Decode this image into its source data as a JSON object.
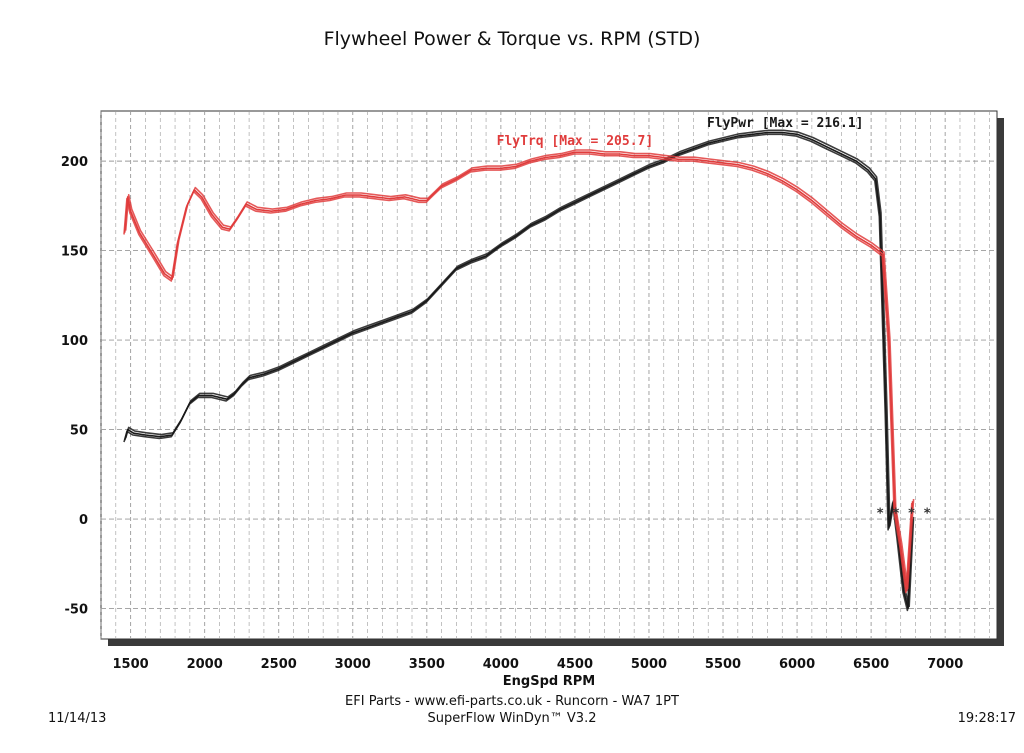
{
  "chart_data": {
    "type": "line",
    "title": "Flywheel Power & Torque vs. RPM (STD)",
    "xlabel": "EngSpd RPM",
    "ylabel": "",
    "xlim": [
      1300,
      7350
    ],
    "ylim": [
      -67,
      228
    ],
    "x_ticks": [
      1500,
      2000,
      2500,
      3000,
      3500,
      4000,
      4500,
      5000,
      5500,
      6000,
      6500,
      7000
    ],
    "y_ticks": [
      -50,
      0,
      50,
      100,
      150,
      200
    ],
    "grid": true,
    "annotations": [
      {
        "text": "FlyPwr [Max = 216.1]",
        "series": "FlyPwr",
        "anchor": [
          5920,
          219
        ]
      },
      {
        "text": "FlyTrq [Max = 205.7]",
        "series": "FlyTrq",
        "anchor": [
          4500,
          209
        ]
      },
      {
        "text": "* * * *",
        "series": "",
        "anchor": [
          6720,
          1
        ]
      }
    ],
    "colors": {
      "FlyPwr": "#1a1a1a",
      "FlyTrq": "#e03c3c",
      "grid": "#9a9a9a",
      "frame": "#333333",
      "shadow": "#3a3a3a"
    },
    "series": [
      {
        "name": "FlyPwr",
        "color": "#1a1a1a",
        "x": [
          1460,
          1480,
          1520,
          1600,
          1700,
          1780,
          1840,
          1900,
          1960,
          2050,
          2150,
          2200,
          2250,
          2300,
          2400,
          2500,
          2600,
          2700,
          2800,
          2900,
          3000,
          3100,
          3200,
          3300,
          3400,
          3500,
          3600,
          3700,
          3800,
          3900,
          4000,
          4100,
          4200,
          4300,
          4400,
          4500,
          4600,
          4700,
          4800,
          4900,
          5000,
          5100,
          5200,
          5300,
          5400,
          5500,
          5600,
          5700,
          5800,
          5900,
          6000,
          6100,
          6200,
          6300,
          6400,
          6480,
          6530,
          6560,
          6600,
          6620,
          6650,
          6680,
          6720,
          6750,
          6780
        ],
        "y": [
          44,
          50,
          48,
          47,
          46,
          47,
          55,
          65,
          69,
          69,
          67,
          70,
          75,
          79,
          81,
          84,
          88,
          92,
          96,
          100,
          104,
          107,
          110,
          113,
          116,
          122,
          131,
          140,
          144,
          147,
          153,
          158,
          164,
          168,
          173,
          177,
          181,
          185,
          189,
          193,
          197,
          200,
          204,
          207,
          210,
          212,
          214,
          215,
          216,
          216,
          215,
          212,
          208,
          204,
          200,
          195,
          190,
          170,
          60,
          -5,
          10,
          -10,
          -40,
          -50,
          0
        ]
      },
      {
        "name": "FlyTrq",
        "color": "#e03c3c",
        "x": [
          1460,
          1480,
          1500,
          1560,
          1650,
          1730,
          1780,
          1820,
          1880,
          1930,
          1980,
          2050,
          2120,
          2170,
          2220,
          2280,
          2350,
          2450,
          2550,
          2650,
          2750,
          2850,
          2950,
          3050,
          3150,
          3250,
          3350,
          3450,
          3500,
          3550,
          3600,
          3700,
          3800,
          3900,
          4000,
          4100,
          4200,
          4300,
          4400,
          4500,
          4600,
          4700,
          4800,
          4900,
          5000,
          5100,
          5200,
          5300,
          5400,
          5500,
          5600,
          5700,
          5800,
          5900,
          6000,
          6100,
          6200,
          6300,
          6400,
          6500,
          6580,
          6620,
          6660,
          6700,
          6740,
          6780
        ],
        "y": [
          160,
          180,
          172,
          160,
          148,
          137,
          134,
          155,
          175,
          184,
          180,
          170,
          163,
          162,
          168,
          176,
          173,
          172,
          173,
          176,
          178,
          179,
          181,
          181,
          180,
          179,
          180,
          178,
          178,
          182,
          186,
          190,
          195,
          196,
          196,
          197,
          200,
          202,
          203,
          205,
          205,
          204,
          204,
          203,
          203,
          202,
          201,
          201,
          200,
          199,
          198,
          196,
          193,
          189,
          184,
          178,
          171,
          164,
          158,
          153,
          148,
          100,
          5,
          -15,
          -40,
          10
        ]
      }
    ]
  },
  "footer": {
    "line1": "EFI Parts - www.efi-parts.co.uk - Runcorn - WA7 1PT",
    "line2": "SuperFlow WinDyn™ V3.2",
    "date": "11/14/13",
    "time": "19:28:17"
  }
}
